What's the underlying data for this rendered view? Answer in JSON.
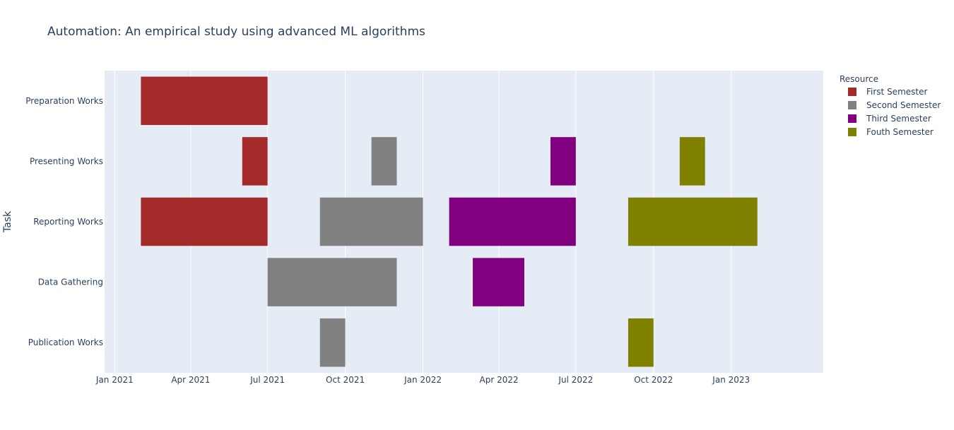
{
  "chart_data": {
    "type": "gantt",
    "title": "Automation: An empirical study using advanced ML algorithms",
    "xlabel": "",
    "ylabel": "Task",
    "xlim": [
      "2020-12-20",
      "2023-04-20"
    ],
    "x_ticks": [
      {
        "date": "2021-01-01",
        "label": "Jan 2021"
      },
      {
        "date": "2021-04-01",
        "label": "Apr 2021"
      },
      {
        "date": "2021-07-01",
        "label": "Jul 2021"
      },
      {
        "date": "2021-10-01",
        "label": "Oct 2021"
      },
      {
        "date": "2022-01-01",
        "label": "Jan 2022"
      },
      {
        "date": "2022-04-01",
        "label": "Apr 2022"
      },
      {
        "date": "2022-07-01",
        "label": "Jul 2022"
      },
      {
        "date": "2022-10-01",
        "label": "Oct 2022"
      },
      {
        "date": "2023-01-01",
        "label": "Jan 2023"
      }
    ],
    "categories": [
      "Preparation Works",
      "Presenting Works",
      "Reporting Works",
      "Data Gathering",
      "Publication Works"
    ],
    "legend": {
      "title": "Resource",
      "placement": "top-right",
      "items": [
        {
          "name": "First Semester",
          "color": "#a52a2a"
        },
        {
          "name": "Second Semester",
          "color": "#808080"
        },
        {
          "name": "Third Semester",
          "color": "#800080"
        },
        {
          "name": "Fouth Semester",
          "color": "#808000"
        }
      ]
    },
    "grid": true,
    "tasks": [
      {
        "task": "Preparation Works",
        "start": "2021-02-01",
        "finish": "2021-07-01",
        "resource": "First Semester"
      },
      {
        "task": "Presenting Works",
        "start": "2021-06-01",
        "finish": "2021-07-01",
        "resource": "First Semester"
      },
      {
        "task": "Reporting Works",
        "start": "2021-02-01",
        "finish": "2021-07-01",
        "resource": "First Semester"
      },
      {
        "task": "Data Gathering",
        "start": "2021-07-01",
        "finish": "2021-12-01",
        "resource": "Second Semester"
      },
      {
        "task": "Reporting Works",
        "start": "2021-09-01",
        "finish": "2022-01-01",
        "resource": "Second Semester"
      },
      {
        "task": "Presenting Works",
        "start": "2021-11-01",
        "finish": "2021-12-01",
        "resource": "Second Semester"
      },
      {
        "task": "Publication Works",
        "start": "2021-09-01",
        "finish": "2021-10-01",
        "resource": "Second Semester"
      },
      {
        "task": "Reporting Works",
        "start": "2022-02-01",
        "finish": "2022-07-01",
        "resource": "Third Semester"
      },
      {
        "task": "Data Gathering",
        "start": "2022-03-01",
        "finish": "2022-05-01",
        "resource": "Third Semester"
      },
      {
        "task": "Presenting Works",
        "start": "2022-06-01",
        "finish": "2022-07-01",
        "resource": "Third Semester"
      },
      {
        "task": "Reporting Works",
        "start": "2022-09-01",
        "finish": "2023-02-01",
        "resource": "Fouth Semester"
      },
      {
        "task": "Publication Works",
        "start": "2022-09-01",
        "finish": "2022-10-01",
        "resource": "Fouth Semester"
      },
      {
        "task": "Presenting Works",
        "start": "2022-11-01",
        "finish": "2022-12-01",
        "resource": "Fouth Semester"
      }
    ]
  }
}
